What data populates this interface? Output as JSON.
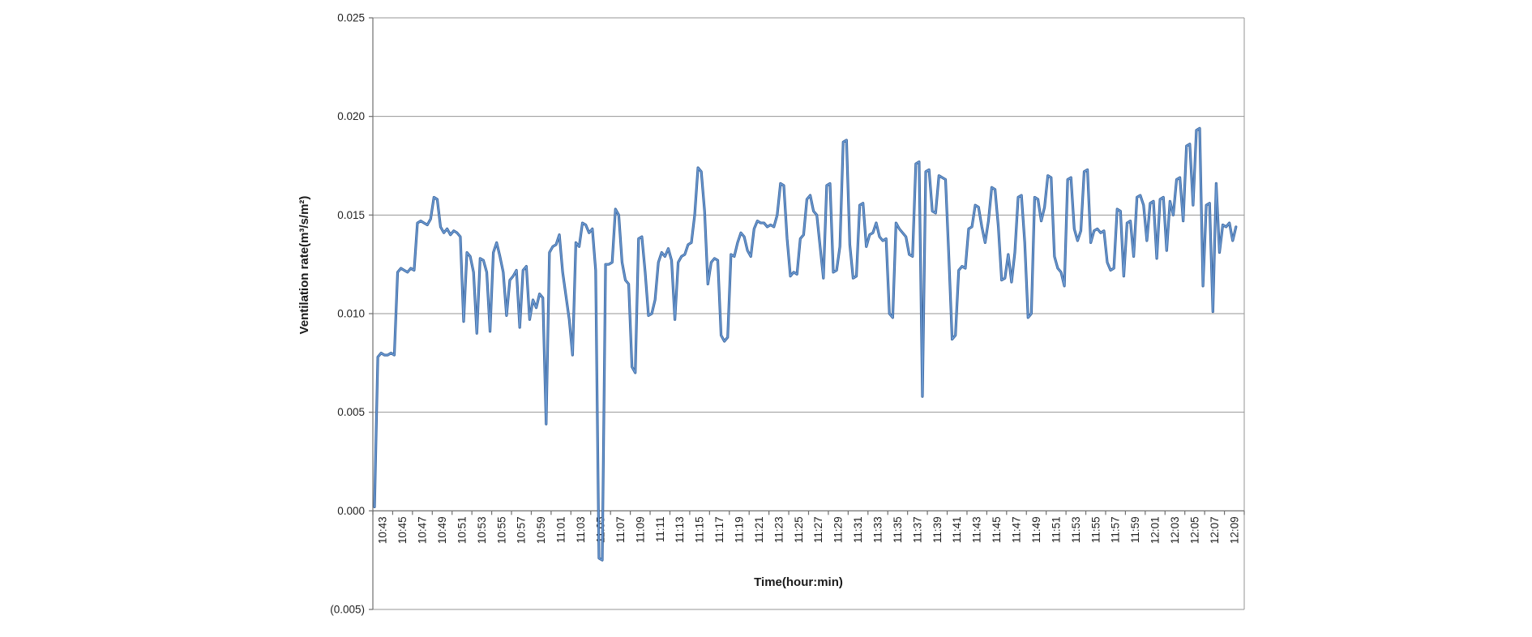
{
  "chart": {
    "y_axis_title": "Ventilation rate(m³/s/m²)",
    "x_axis_title": "Time(hour:min)",
    "y_tick_labels": [
      "0.025",
      "0.020",
      "0.015",
      "0.010",
      "0.005",
      "0.000",
      "(0.005)"
    ],
    "negative_label_color": "#FF2D2D",
    "tick_label_color": "#1F1F1F",
    "gridline_color": "#969696",
    "axis_line_color": "#6E6E6E",
    "series_color": "#4F81BD",
    "background_color": "#FFFFFF"
  },
  "chart_data": {
    "type": "line",
    "title": "",
    "xlabel": "Time(hour:min)",
    "ylabel": "Ventilation rate(m³/s/m²)",
    "ylim": [
      -0.005,
      0.025
    ],
    "y_ticks": [
      0.025,
      0.02,
      0.015,
      0.01,
      0.005,
      0.0,
      -0.005
    ],
    "grid": true,
    "legend": "none",
    "x_tick_labels": [
      "10:43",
      "10:45",
      "10:47",
      "10:49",
      "10:51",
      "10:53",
      "10:55",
      "10:57",
      "10:59",
      "11:01",
      "11:03",
      "11:05",
      "11:07",
      "11:09",
      "11:11",
      "11:13",
      "11:15",
      "11:17",
      "11:19",
      "11:21",
      "11:23",
      "11:25",
      "11:27",
      "11:29",
      "11:31",
      "11:33",
      "11:35",
      "11:37",
      "11:39",
      "11:41",
      "11:43",
      "11:45",
      "11:47",
      "11:49",
      "11:51",
      "11:53",
      "11:55",
      "11:57",
      "11:59",
      "12:01",
      "12:03",
      "12:05",
      "12:07",
      "12:09"
    ],
    "points_per_label_interval": 6,
    "series": [
      {
        "name": "Ventilation rate",
        "color": "#4F81BD",
        "start_label": "10:43",
        "interval_seconds": 20,
        "values": [
          0.0002,
          0.0078,
          0.008,
          0.0079,
          0.0079,
          0.008,
          0.0079,
          0.0121,
          0.0123,
          0.0122,
          0.0121,
          0.0123,
          0.0122,
          0.0146,
          0.0147,
          0.0146,
          0.0145,
          0.0148,
          0.0159,
          0.0158,
          0.0144,
          0.0141,
          0.0143,
          0.014,
          0.0142,
          0.0141,
          0.0139,
          0.0096,
          0.0131,
          0.0129,
          0.0121,
          0.009,
          0.0128,
          0.0127,
          0.0121,
          0.0091,
          0.0131,
          0.0136,
          0.0129,
          0.0121,
          0.0099,
          0.0117,
          0.0119,
          0.0122,
          0.0093,
          0.0122,
          0.0124,
          0.0097,
          0.0107,
          0.0103,
          0.011,
          0.0108,
          0.0044,
          0.0131,
          0.0134,
          0.0135,
          0.014,
          0.0121,
          0.0109,
          0.0097,
          0.0079,
          0.0136,
          0.0134,
          0.0146,
          0.0145,
          0.0141,
          0.0143,
          0.0122,
          -0.0024,
          -0.0025,
          0.0125,
          0.0125,
          0.0126,
          0.0153,
          0.015,
          0.0126,
          0.0117,
          0.0115,
          0.0073,
          0.007,
          0.0138,
          0.0139,
          0.0121,
          0.0099,
          0.01,
          0.0107,
          0.0126,
          0.0131,
          0.0129,
          0.0133,
          0.0127,
          0.0097,
          0.0126,
          0.0129,
          0.013,
          0.0135,
          0.0136,
          0.015,
          0.0174,
          0.0172,
          0.0152,
          0.0115,
          0.0126,
          0.0128,
          0.0127,
          0.0089,
          0.0086,
          0.0088,
          0.013,
          0.0129,
          0.0136,
          0.0141,
          0.0139,
          0.0132,
          0.0129,
          0.0143,
          0.0147,
          0.0146,
          0.0146,
          0.0144,
          0.0145,
          0.0144,
          0.015,
          0.0166,
          0.0165,
          0.0138,
          0.0119,
          0.0121,
          0.012,
          0.0138,
          0.014,
          0.0158,
          0.016,
          0.0152,
          0.015,
          0.0134,
          0.0118,
          0.0165,
          0.0166,
          0.0121,
          0.0122,
          0.0134,
          0.0187,
          0.0188,
          0.0135,
          0.0118,
          0.0119,
          0.0155,
          0.0156,
          0.0134,
          0.014,
          0.0141,
          0.0146,
          0.0139,
          0.0137,
          0.0138,
          0.01,
          0.0098,
          0.0146,
          0.0143,
          0.0141,
          0.0139,
          0.013,
          0.0129,
          0.0176,
          0.0177,
          0.0058,
          0.0172,
          0.0173,
          0.0152,
          0.0151,
          0.017,
          0.0169,
          0.0168,
          0.0129,
          0.0087,
          0.0089,
          0.0122,
          0.0124,
          0.0123,
          0.0143,
          0.0144,
          0.0155,
          0.0154,
          0.0144,
          0.0136,
          0.0147,
          0.0164,
          0.0163,
          0.0144,
          0.0117,
          0.0118,
          0.013,
          0.0116,
          0.0131,
          0.0159,
          0.016,
          0.0136,
          0.0098,
          0.01,
          0.0159,
          0.0158,
          0.0147,
          0.0154,
          0.017,
          0.0169,
          0.0129,
          0.0123,
          0.0121,
          0.0114,
          0.0168,
          0.0169,
          0.0143,
          0.0137,
          0.0142,
          0.0172,
          0.0173,
          0.0136,
          0.0142,
          0.0143,
          0.0141,
          0.0142,
          0.0126,
          0.0122,
          0.0123,
          0.0153,
          0.0152,
          0.0119,
          0.0146,
          0.0147,
          0.0129,
          0.0159,
          0.016,
          0.0155,
          0.0137,
          0.0156,
          0.0157,
          0.0128,
          0.0158,
          0.0159,
          0.0132,
          0.0157,
          0.015,
          0.0168,
          0.0169,
          0.0147,
          0.0185,
          0.0186,
          0.0155,
          0.0193,
          0.0194,
          0.0114,
          0.0155,
          0.0156,
          0.0101,
          0.0166,
          0.0131,
          0.0145,
          0.0144,
          0.0146,
          0.0137,
          0.0144
        ]
      }
    ]
  }
}
